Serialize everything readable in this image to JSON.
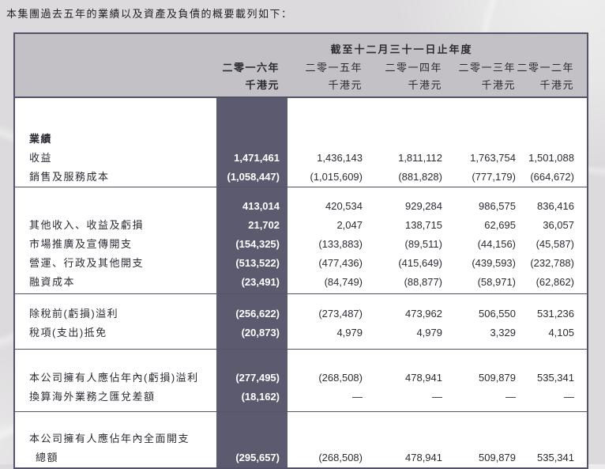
{
  "title": "本集團過去五年的業績以及資產及負債的概要載列如下：",
  "table": {
    "period_header": "截至十二月三十一日止年度",
    "columns": [
      {
        "year": "二零一六年",
        "unit": "千港元",
        "highlight": true
      },
      {
        "year": "二零一五年",
        "unit": "千港元",
        "highlight": false
      },
      {
        "year": "二零一四年",
        "unit": "千港元",
        "highlight": false
      },
      {
        "year": "二零一三年",
        "unit": "千港元",
        "highlight": false
      },
      {
        "year": "二零一二年",
        "unit": "千港元",
        "highlight": false
      }
    ],
    "sections": [
      {
        "rows": [
          {
            "label": "業績",
            "bold": true,
            "indent": false,
            "values": [
              "",
              "",
              "",
              "",
              ""
            ]
          },
          {
            "label": "收益",
            "bold": false,
            "indent": false,
            "values": [
              "1,471,461",
              "1,436,143",
              "1,811,112",
              "1,763,754",
              "1,501,088"
            ]
          },
          {
            "label": "銷售及服務成本",
            "bold": false,
            "indent": false,
            "values": [
              "(1,058,447)",
              "(1,015,609)",
              "(881,828)",
              "(777,179)",
              "(664,672)"
            ]
          }
        ]
      },
      {
        "rows": [
          {
            "label": "",
            "bold": false,
            "indent": false,
            "values": [
              "413,014",
              "420,534",
              "929,284",
              "986,575",
              "836,416"
            ]
          },
          {
            "label": "其他收入、收益及虧損",
            "bold": false,
            "indent": false,
            "values": [
              "21,702",
              "2,047",
              "138,715",
              "62,695",
              "36,057"
            ]
          },
          {
            "label": "市場推廣及宣傳開支",
            "bold": false,
            "indent": false,
            "values": [
              "(154,325)",
              "(133,883)",
              "(89,511)",
              "(44,156)",
              "(45,587)"
            ]
          },
          {
            "label": "營運、行政及其他開支",
            "bold": false,
            "indent": false,
            "values": [
              "(513,522)",
              "(477,436)",
              "(415,649)",
              "(439,593)",
              "(232,788)"
            ]
          },
          {
            "label": "融資成本",
            "bold": false,
            "indent": false,
            "values": [
              "(23,491)",
              "(84,749)",
              "(88,877)",
              "(58,971)",
              "(62,862)"
            ]
          }
        ]
      },
      {
        "rows": [
          {
            "label": "除稅前(虧損)溢利",
            "bold": false,
            "indent": false,
            "values": [
              "(256,622)",
              "(273,487)",
              "473,962",
              "506,550",
              "531,236"
            ]
          },
          {
            "label": "稅項(支出)抵免",
            "bold": false,
            "indent": false,
            "values": [
              "(20,873)",
              "4,979",
              "4,979",
              "3,329",
              "4,105"
            ]
          }
        ]
      },
      {
        "rows": [
          {
            "label": "本公司擁有人應佔年內(虧損)溢利",
            "bold": false,
            "indent": false,
            "values": [
              "(277,495)",
              "(268,508)",
              "478,941",
              "509,879",
              "535,341"
            ]
          },
          {
            "label": "換算海外業務之匯兌差額",
            "bold": false,
            "indent": false,
            "values": [
              "(18,162)",
              "—",
              "—",
              "—",
              "—"
            ]
          }
        ]
      },
      {
        "rows": [
          {
            "label": "本公司擁有人應佔年內全面開支",
            "bold": false,
            "indent": false,
            "values": [
              "",
              "",
              "",
              "",
              ""
            ]
          },
          {
            "label": "總額",
            "bold": false,
            "indent": true,
            "values": [
              "(295,657)",
              "(268,508)",
              "478,941",
              "509,879",
              "535,341"
            ]
          }
        ]
      }
    ]
  },
  "colors": {
    "page_bg": "#dcdadc",
    "header_bg": "#c3c1c5",
    "highlight_column_bg": "#5c5a6e",
    "highlight_text": "#ffffff",
    "border_dark": "#54526a",
    "body_bg": "#ffffff",
    "text": "#2b2b33"
  }
}
